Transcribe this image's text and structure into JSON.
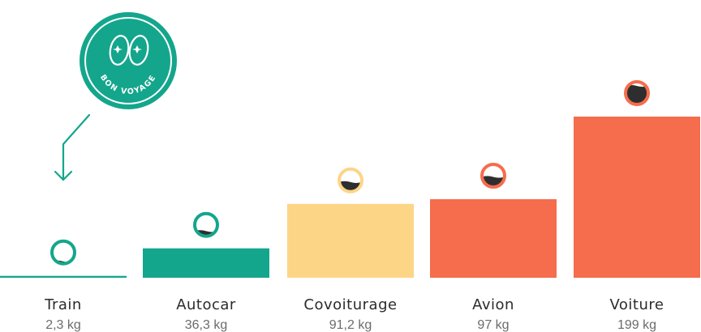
{
  "badge": {
    "text": "BON VOYAGE",
    "icon": "binoculars-icon"
  },
  "colors": {
    "teal": "#14a68c",
    "yellow": "#fdd587",
    "orange": "#f56d4d",
    "dark": "#2e2e2e"
  },
  "chart_data": {
    "type": "bar",
    "title": "",
    "xlabel": "",
    "ylabel": "",
    "unit": "kg",
    "categories": [
      "Train",
      "Autocar",
      "Covoiturage",
      "Avion",
      "Voiture"
    ],
    "values": [
      2.3,
      36.3,
      91.2,
      97,
      199
    ],
    "value_labels": [
      "2,3 kg",
      "36,3 kg",
      "91,2 kg",
      "97 kg",
      "199 kg"
    ],
    "bar_colors": [
      "#14a68c",
      "#14a68c",
      "#fdd587",
      "#f56d4d",
      "#f56d4d"
    ],
    "ylim": [
      0,
      199
    ],
    "grid": false,
    "legend": "none"
  }
}
